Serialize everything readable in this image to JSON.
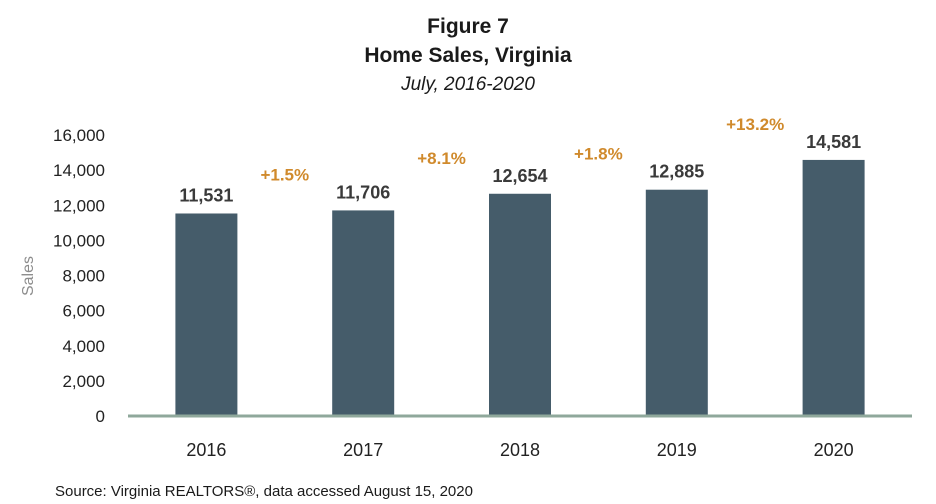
{
  "chart_data": {
    "type": "bar",
    "title": "Figure 7",
    "subtitle_line1": "Home Sales, Virginia",
    "subtitle_line2": "July, 2016-2020",
    "ylabel": "Sales",
    "xlabel": "",
    "categories": [
      "2016",
      "2017",
      "2018",
      "2019",
      "2020"
    ],
    "values": [
      11531,
      11706,
      12654,
      12885,
      14581
    ],
    "value_labels": [
      "11,531",
      "11,706",
      "12,654",
      "12,885",
      "14,581"
    ],
    "change_labels": [
      "+1.5%",
      "+8.1%",
      "+1.8%",
      "+13.2%"
    ],
    "ylim": [
      0,
      16000
    ],
    "yticks": [
      0,
      2000,
      4000,
      6000,
      8000,
      10000,
      12000,
      14000,
      16000
    ],
    "ytick_labels": [
      "0",
      "2,000",
      "4,000",
      "6,000",
      "8,000",
      "10,000",
      "12,000",
      "14,000",
      "16,000"
    ],
    "grid": false,
    "legend": "none",
    "colors": {
      "bar": "#455c6a",
      "axis": "#8fa89b",
      "change": "#d08a2c"
    },
    "source": "Source: Virginia REALTORS®, data accessed August 15, 2020"
  }
}
